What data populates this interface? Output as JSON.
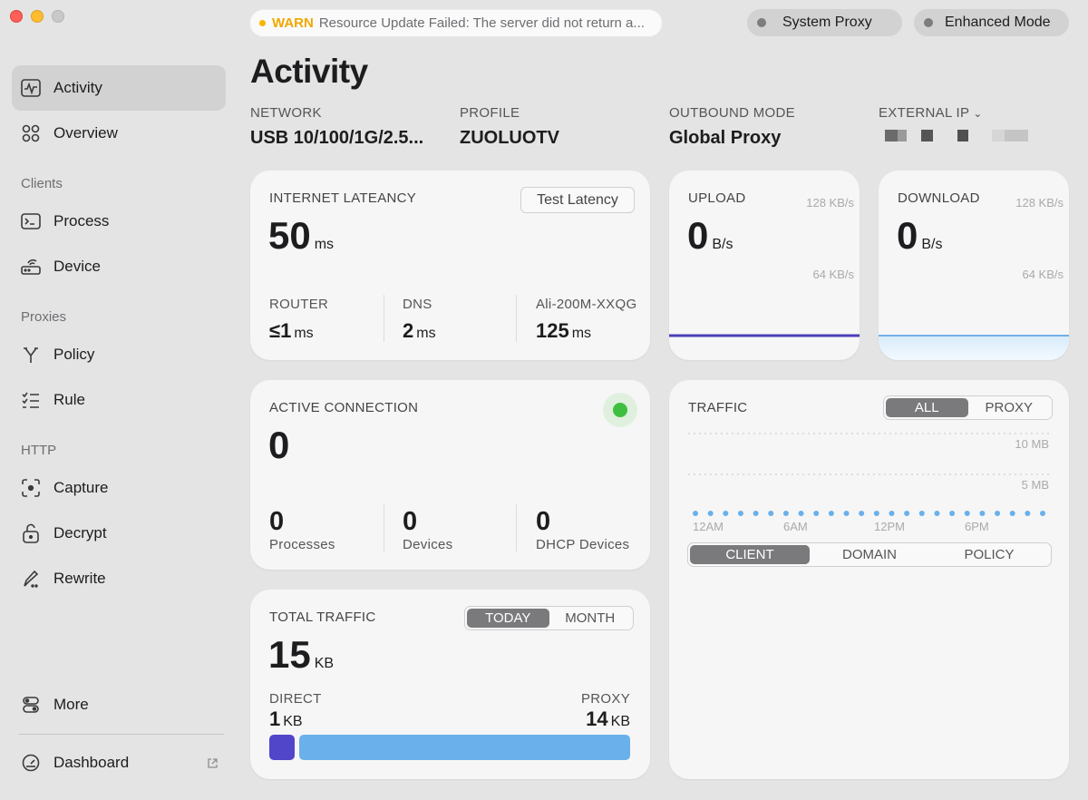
{
  "window": {
    "title": "Activity"
  },
  "sidebar": {
    "items": [
      {
        "label": "Activity",
        "icon": "activity-icon",
        "active": true
      },
      {
        "label": "Overview",
        "icon": "grid-icon"
      }
    ],
    "sections": [
      {
        "title": "Clients",
        "items": [
          {
            "label": "Process",
            "icon": "terminal-icon"
          },
          {
            "label": "Device",
            "icon": "router-icon"
          }
        ]
      },
      {
        "title": "Proxies",
        "items": [
          {
            "label": "Policy",
            "icon": "fork-icon"
          },
          {
            "label": "Rule",
            "icon": "checklist-icon"
          }
        ]
      },
      {
        "title": "HTTP",
        "items": [
          {
            "label": "Capture",
            "icon": "capture-icon"
          },
          {
            "label": "Decrypt",
            "icon": "unlock-icon"
          },
          {
            "label": "Rewrite",
            "icon": "pen-icon"
          }
        ]
      }
    ],
    "more": {
      "label": "More",
      "icon": "toggles-icon"
    },
    "dashboard": {
      "label": "Dashboard",
      "icon": "gauge-icon"
    }
  },
  "topbar": {
    "warn": {
      "level": "WARN",
      "message": "Resource Update Failed: The server did not return a..."
    },
    "system_proxy": "System Proxy",
    "enhanced_mode": "Enhanced Mode"
  },
  "header": {
    "network": {
      "label": "NETWORK",
      "value": "USB 10/100/1G/2.5..."
    },
    "profile": {
      "label": "PROFILE",
      "value": "ZUOLUOTV"
    },
    "outbound": {
      "label": "OUTBOUND MODE",
      "value": "Global Proxy"
    },
    "external_ip": {
      "label": "EXTERNAL IP"
    }
  },
  "latency": {
    "title": "INTERNET LATEANCY",
    "test_button": "Test Latency",
    "value": "50",
    "unit": "ms",
    "router": {
      "label": "ROUTER",
      "value": "≤1",
      "unit": "ms"
    },
    "dns": {
      "label": "DNS",
      "value": "2",
      "unit": "ms"
    },
    "proxy": {
      "label": "Ali-200M-XXQG",
      "value": "125",
      "unit": "ms"
    }
  },
  "upload": {
    "title": "UPLOAD",
    "value": "0",
    "unit": "B/s",
    "scale_top": "128 KB/s",
    "scale_mid": "64 KB/s",
    "line_color": "#4b3fb8"
  },
  "download": {
    "title": "DOWNLOAD",
    "value": "0",
    "unit": "B/s",
    "scale_top": "128 KB/s",
    "scale_mid": "64 KB/s",
    "line_color": "#6fb0e8"
  },
  "connections": {
    "title": "ACTIVE CONNECTION",
    "value": "0",
    "processes": {
      "value": "0",
      "label": "Processes"
    },
    "devices": {
      "value": "0",
      "label": "Devices"
    },
    "dhcp": {
      "value": "0",
      "label": "DHCP Devices"
    },
    "status_color": "#3fbf3f"
  },
  "total_traffic": {
    "title": "TOTAL TRAFFIC",
    "tabs": [
      "TODAY",
      "MONTH"
    ],
    "value": "15",
    "unit": "KB",
    "direct": {
      "label": "DIRECT",
      "value": "1",
      "unit": "KB",
      "color": "#5145c9"
    },
    "proxy": {
      "label": "PROXY",
      "value": "14",
      "unit": "KB",
      "color": "#6ab0ea"
    }
  },
  "traffic": {
    "title": "TRAFFIC",
    "filter_tabs": [
      "ALL",
      "PROXY"
    ],
    "y_labels": [
      "10 MB",
      "5 MB"
    ],
    "x_labels": [
      "12AM",
      "6AM",
      "12PM",
      "6PM"
    ],
    "group_tabs": [
      "CLIENT",
      "DOMAIN",
      "POLICY"
    ],
    "dot_color": "#6ab0ea"
  }
}
